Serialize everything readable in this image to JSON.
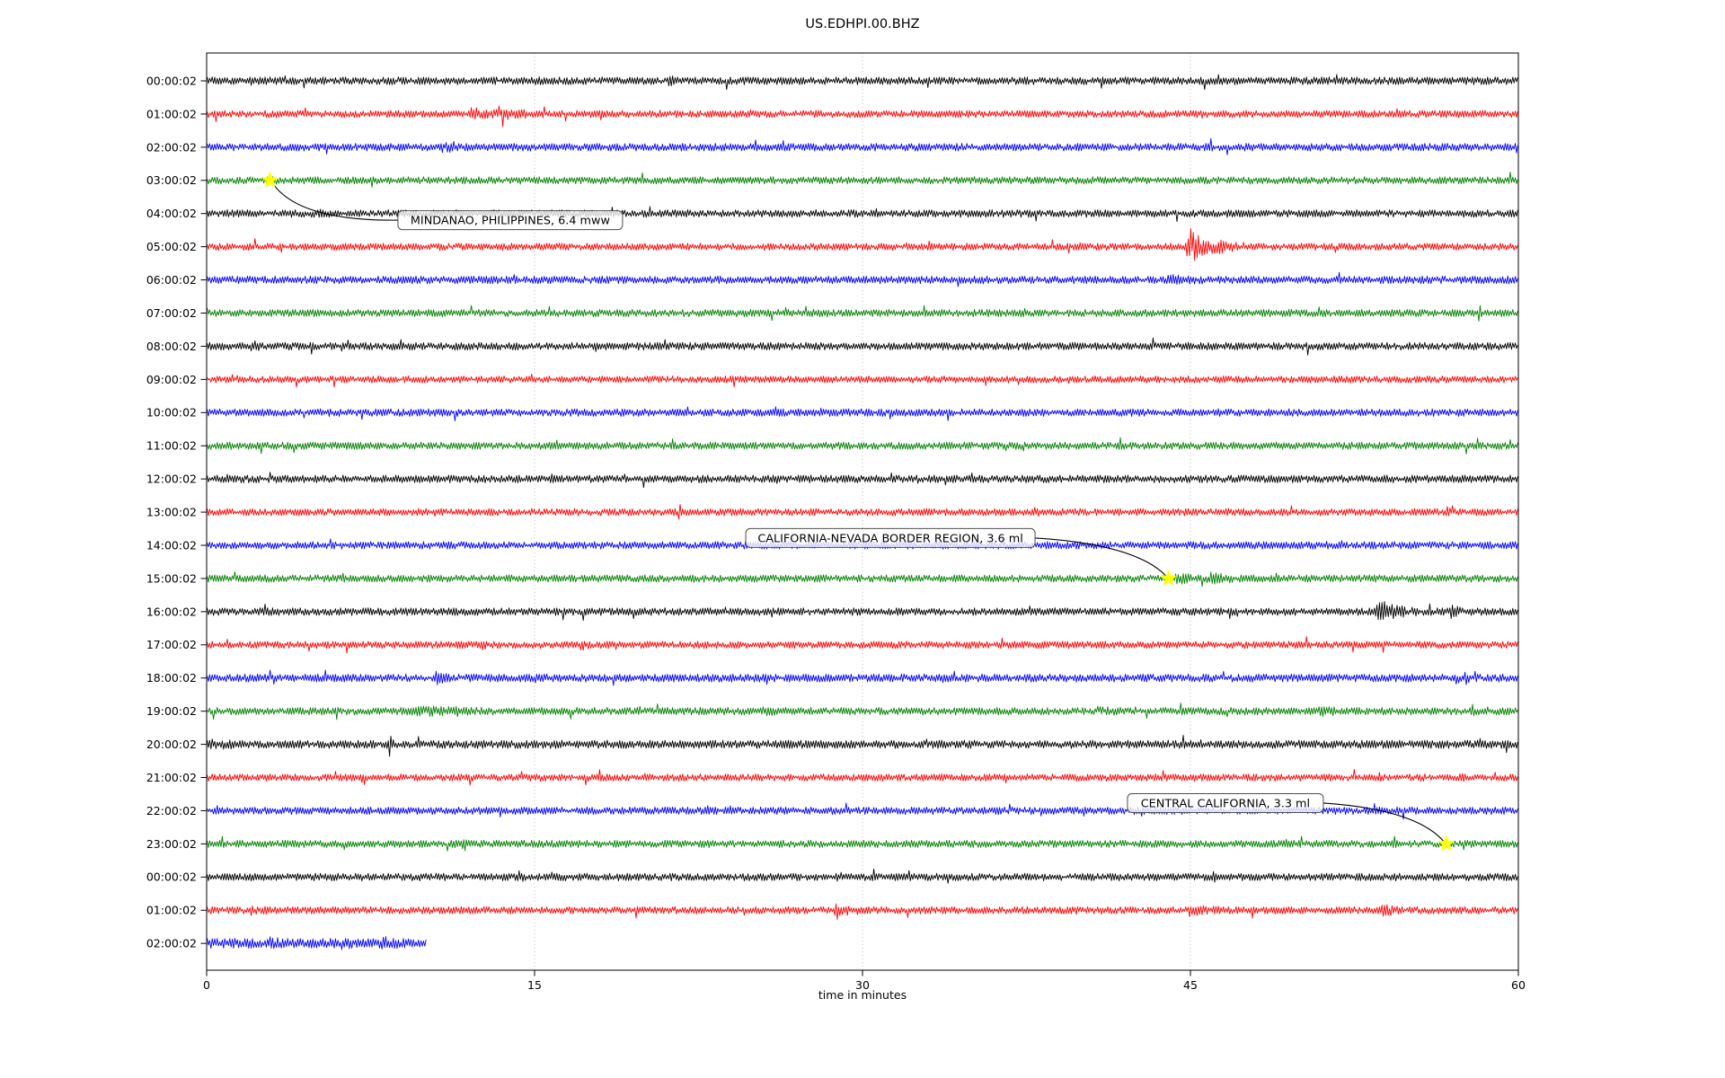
{
  "chart_data": {
    "type": "line",
    "subtype": "seismogram-dayplot",
    "title": "US.EDHPI.00.BHZ",
    "xlabel": "time in minutes",
    "x_ticks": [
      0,
      15,
      30,
      45,
      60
    ],
    "x_range_minutes": [
      0,
      60
    ],
    "grid_minutes": [
      15,
      30,
      45
    ],
    "grid_color": "#b0b0b0",
    "trace_colors_cycle": [
      "#000000",
      "#ff0000",
      "#0000ff",
      "#008000"
    ],
    "star_color": "#ffff00",
    "rows": [
      {
        "label": "00:00:02",
        "color": "#000000",
        "amp": 4.3,
        "end_min": 60,
        "bursts": [
          [
            14.9,
            15.3,
            2.0
          ],
          [
            21.1,
            21.5,
            2.2
          ]
        ]
      },
      {
        "label": "01:00:02",
        "color": "#ff0000",
        "amp": 4.0,
        "end_min": 60,
        "bursts": [
          [
            11.9,
            13.0,
            2.8
          ],
          [
            13.0,
            15.6,
            2.0
          ]
        ]
      },
      {
        "label": "02:00:02",
        "color": "#0000ff",
        "amp": 4.3,
        "end_min": 60,
        "bursts": [
          [
            10.9,
            11.5,
            1.7
          ]
        ]
      },
      {
        "label": "03:00:02",
        "color": "#008000",
        "amp": 4.1,
        "end_min": 60,
        "bursts": []
      },
      {
        "label": "04:00:02",
        "color": "#000000",
        "amp": 4.2,
        "end_min": 60,
        "bursts": []
      },
      {
        "label": "05:00:02",
        "color": "#ff0000",
        "amp": 4.0,
        "end_min": 60,
        "bursts": [
          [
            44.6,
            47.6,
            4.5
          ]
        ]
      },
      {
        "label": "06:00:02",
        "color": "#0000ff",
        "amp": 4.3,
        "end_min": 60,
        "bursts": [
          [
            43.8,
            45.8,
            1.5
          ]
        ]
      },
      {
        "label": "07:00:02",
        "color": "#008000",
        "amp": 4.1,
        "end_min": 60,
        "bursts": []
      },
      {
        "label": "08:00:02",
        "color": "#000000",
        "amp": 4.3,
        "end_min": 60,
        "bursts": [
          [
            2.0,
            2.7,
            1.7
          ]
        ]
      },
      {
        "label": "09:00:02",
        "color": "#ff0000",
        "amp": 3.9,
        "end_min": 60,
        "bursts": []
      },
      {
        "label": "10:00:02",
        "color": "#0000ff",
        "amp": 4.2,
        "end_min": 60,
        "bursts": []
      },
      {
        "label": "11:00:02",
        "color": "#008000",
        "amp": 4.1,
        "end_min": 60,
        "bursts": []
      },
      {
        "label": "12:00:02",
        "color": "#000000",
        "amp": 4.3,
        "end_min": 60,
        "bursts": []
      },
      {
        "label": "13:00:02",
        "color": "#ff0000",
        "amp": 4.0,
        "end_min": 60,
        "bursts": []
      },
      {
        "label": "14:00:02",
        "color": "#0000ff",
        "amp": 4.2,
        "end_min": 60,
        "bursts": []
      },
      {
        "label": "15:00:02",
        "color": "#008000",
        "amp": 4.1,
        "end_min": 60,
        "bursts": [
          [
            44.2,
            45.3,
            2.3
          ],
          [
            45.7,
            47.3,
            2.0
          ]
        ]
      },
      {
        "label": "16:00:02",
        "color": "#000000",
        "amp": 4.3,
        "end_min": 60,
        "bursts": [
          [
            53.4,
            55.5,
            3.2
          ],
          [
            56.7,
            57.8,
            2.0
          ]
        ]
      },
      {
        "label": "17:00:02",
        "color": "#ff0000",
        "amp": 4.0,
        "end_min": 60,
        "bursts": [
          [
            12.6,
            12.9,
            1.8
          ],
          [
            17.0,
            17.6,
            2.2
          ]
        ]
      },
      {
        "label": "18:00:02",
        "color": "#0000ff",
        "amp": 4.5,
        "end_min": 60,
        "bursts": [
          [
            3.1,
            3.5,
            1.8
          ],
          [
            10.4,
            11.1,
            1.9
          ],
          [
            57.5,
            57.9,
            2.2
          ]
        ]
      },
      {
        "label": "19:00:02",
        "color": "#008000",
        "amp": 4.2,
        "end_min": 60,
        "bursts": [
          [
            9.3,
            12.7,
            1.6
          ],
          [
            11.4,
            11.7,
            2.1
          ],
          [
            25.4,
            26.3,
            1.5
          ],
          [
            40.3,
            42.3,
            1.4
          ],
          [
            50.7,
            52.5,
            1.4
          ],
          [
            57.8,
            58.1,
            2.6
          ],
          [
            58.5,
            58.8,
            1.8
          ]
        ]
      },
      {
        "label": "20:00:02",
        "color": "#000000",
        "amp": 4.6,
        "end_min": 60,
        "bursts": [
          [
            0.0,
            1.8,
            1.5
          ],
          [
            8.3,
            8.6,
            3.6
          ],
          [
            33.5,
            34.0,
            1.5
          ]
        ]
      },
      {
        "label": "21:00:02",
        "color": "#ff0000",
        "amp": 4.0,
        "end_min": 60,
        "bursts": [
          [
            51.2,
            51.9,
            1.5
          ],
          [
            53.6,
            53.9,
            2.8
          ],
          [
            57.3,
            57.6,
            1.9
          ],
          [
            58.9,
            59.2,
            1.9
          ]
        ]
      },
      {
        "label": "22:00:02",
        "color": "#0000ff",
        "amp": 4.2,
        "end_min": 60,
        "bursts": []
      },
      {
        "label": "23:00:02",
        "color": "#008000",
        "amp": 4.1,
        "end_min": 60,
        "bursts": [
          [
            9.4,
            9.8,
            1.9
          ],
          [
            11.6,
            12.0,
            1.8
          ]
        ]
      },
      {
        "label": "00:00:02",
        "color": "#000000",
        "amp": 4.2,
        "end_min": 60,
        "bursts": [
          [
            14.2,
            14.6,
            1.9
          ],
          [
            28.8,
            29.3,
            1.6
          ],
          [
            46.0,
            46.5,
            1.5
          ]
        ]
      },
      {
        "label": "01:00:02",
        "color": "#ff0000",
        "amp": 4.1,
        "end_min": 60,
        "bursts": [
          [
            1.9,
            2.9,
            1.6
          ],
          [
            28.6,
            30.0,
            2.6
          ],
          [
            44.7,
            46.3,
            2.2
          ],
          [
            53.6,
            55.0,
            2.0
          ]
        ]
      },
      {
        "label": "02:00:02",
        "color": "#0000ff",
        "amp": 5.6,
        "end_min": 10.05,
        "bursts": [
          [
            2.8,
            3.3,
            1.8
          ],
          [
            6.1,
            6.6,
            1.9
          ],
          [
            8.0,
            8.5,
            1.7
          ]
        ]
      }
    ],
    "events": [
      {
        "text": "MINDANAO, PHILIPPINES, 6.4 mww",
        "row": 3,
        "minute": 2.9,
        "label_row": 4.2,
        "label_minute": 8.75,
        "side": "left"
      },
      {
        "text": "CALIFORNIA-NEVADA BORDER REGION, 3.6 ml",
        "row": 15,
        "minute": 44.0,
        "label_row": 13.78,
        "label_minute": 24.66,
        "side": "right"
      },
      {
        "text": "CENTRAL CALIFORNIA, 3.3 ml",
        "row": 23,
        "minute": 56.7,
        "label_row": 21.77,
        "label_minute": 42.12,
        "side": "right"
      }
    ]
  }
}
